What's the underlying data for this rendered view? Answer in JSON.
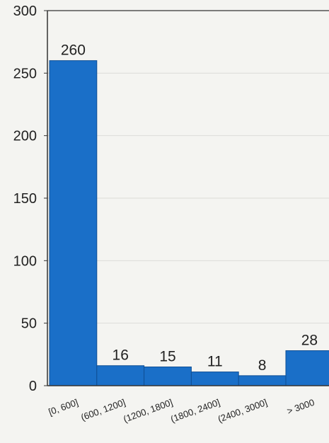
{
  "chart_data": {
    "type": "bar",
    "categories": [
      "[0, 600]",
      "(600, 1200]",
      "(1200, 1800]",
      "(1800, 2400]",
      "(2400, 3000]",
      "> 3000"
    ],
    "values": [
      260,
      16,
      15,
      11,
      8,
      28
    ],
    "ylim": [
      0,
      300
    ],
    "yticks": [
      0,
      50,
      100,
      150,
      200,
      250,
      300
    ],
    "grid": true,
    "bar_color": "#1a6fc8",
    "bar_edge_color": "#0f4f95"
  }
}
